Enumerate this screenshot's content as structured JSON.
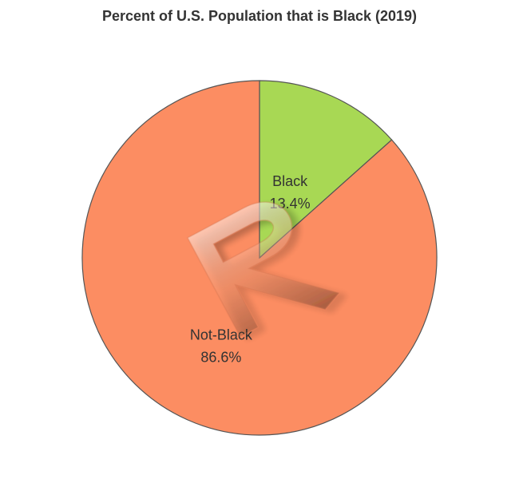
{
  "chart_data": {
    "type": "pie",
    "title": "Percent of U.S. Population that is Black (2019)",
    "slices": [
      {
        "label": "Black",
        "value": 13.4,
        "value_label": "13.4%",
        "color": "#a8d854"
      },
      {
        "label": "Not-Black",
        "value": 86.6,
        "value_label": "86.6%",
        "color": "#fc8d62"
      }
    ],
    "start_angle": "12 o'clock",
    "direction": "clockwise",
    "border_color": "#555555"
  }
}
